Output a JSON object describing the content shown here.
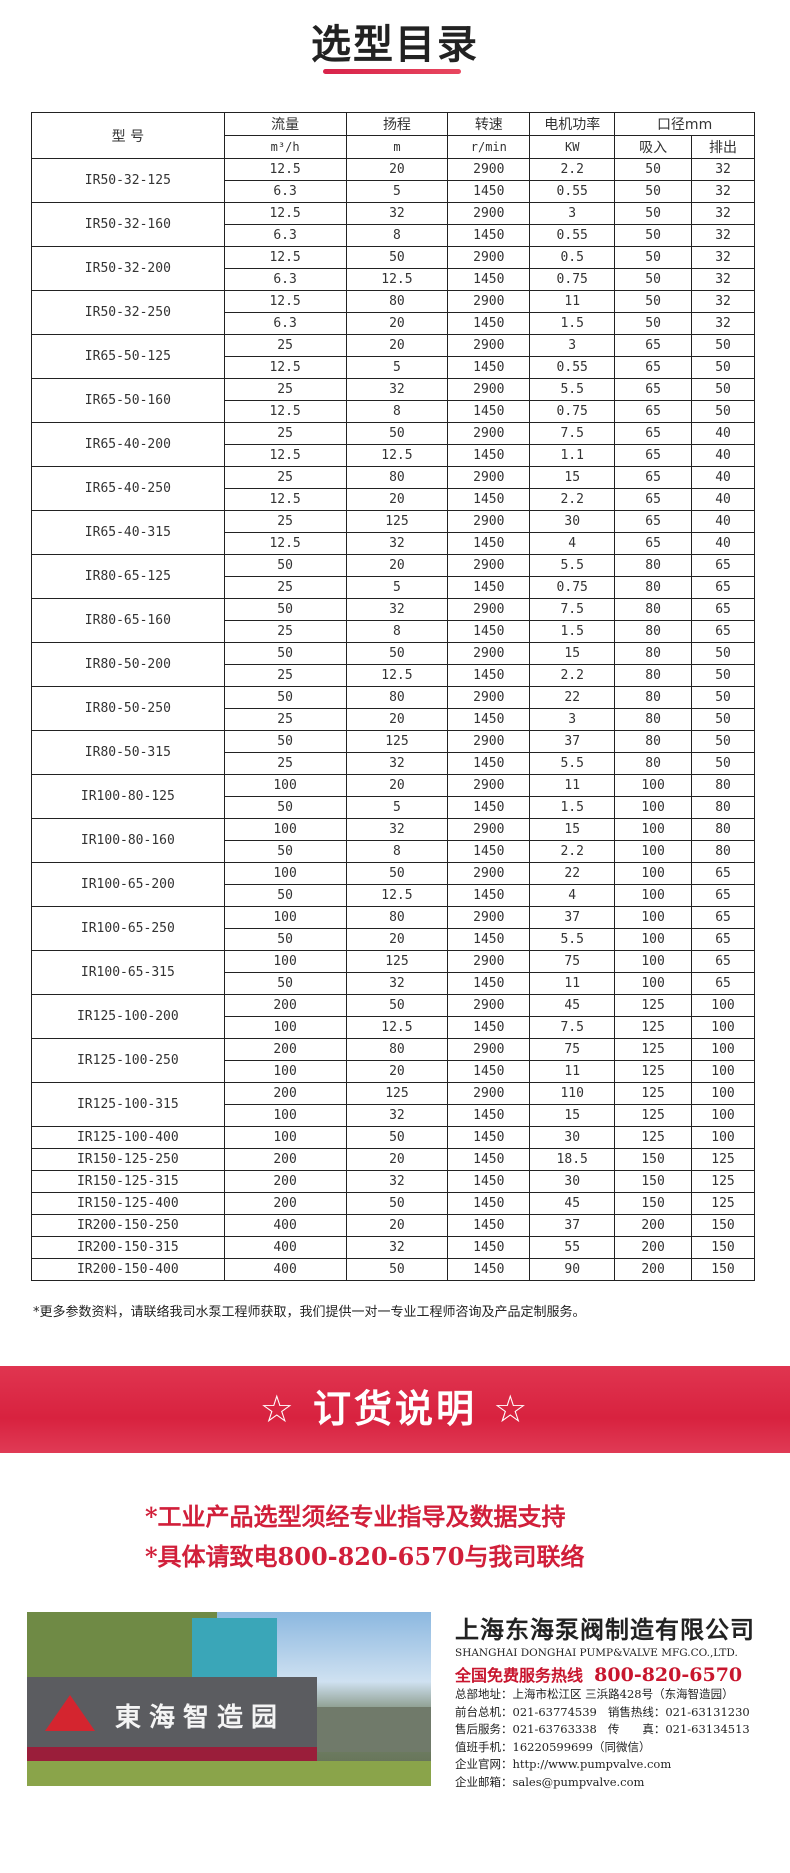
{
  "title": "选型目录",
  "table": {
    "headers": {
      "model": "型 号",
      "flow": "流量",
      "head": "扬程",
      "speed": "转速",
      "power": "电机功率",
      "diameter": "口径mm"
    },
    "units": {
      "flow": "m³/h",
      "head": "m",
      "speed": "r/min",
      "power": "KW",
      "inlet": "吸入",
      "outlet": "排出"
    },
    "models": [
      {
        "model": "IR50-32-125",
        "rows": [
          [
            "12.5",
            "20",
            "2900",
            "2.2",
            "50",
            "32"
          ],
          [
            "6.3",
            "5",
            "1450",
            "0.55",
            "50",
            "32"
          ]
        ]
      },
      {
        "model": "IR50-32-160",
        "rows": [
          [
            "12.5",
            "32",
            "2900",
            "3",
            "50",
            "32"
          ],
          [
            "6.3",
            "8",
            "1450",
            "0.55",
            "50",
            "32"
          ]
        ]
      },
      {
        "model": "IR50-32-200",
        "rows": [
          [
            "12.5",
            "50",
            "2900",
            "0.5",
            "50",
            "32"
          ],
          [
            "6.3",
            "12.5",
            "1450",
            "0.75",
            "50",
            "32"
          ]
        ]
      },
      {
        "model": "IR50-32-250",
        "rows": [
          [
            "12.5",
            "80",
            "2900",
            "11",
            "50",
            "32"
          ],
          [
            "6.3",
            "20",
            "1450",
            "1.5",
            "50",
            "32"
          ]
        ]
      },
      {
        "model": "IR65-50-125",
        "rows": [
          [
            "25",
            "20",
            "2900",
            "3",
            "65",
            "50"
          ],
          [
            "12.5",
            "5",
            "1450",
            "0.55",
            "65",
            "50"
          ]
        ]
      },
      {
        "model": "IR65-50-160",
        "rows": [
          [
            "25",
            "32",
            "2900",
            "5.5",
            "65",
            "50"
          ],
          [
            "12.5",
            "8",
            "1450",
            "0.75",
            "65",
            "50"
          ]
        ]
      },
      {
        "model": "IR65-40-200",
        "rows": [
          [
            "25",
            "50",
            "2900",
            "7.5",
            "65",
            "40"
          ],
          [
            "12.5",
            "12.5",
            "1450",
            "1.1",
            "65",
            "40"
          ]
        ]
      },
      {
        "model": "IR65-40-250",
        "rows": [
          [
            "25",
            "80",
            "2900",
            "15",
            "65",
            "40"
          ],
          [
            "12.5",
            "20",
            "1450",
            "2.2",
            "65",
            "40"
          ]
        ]
      },
      {
        "model": "IR65-40-315",
        "rows": [
          [
            "25",
            "125",
            "2900",
            "30",
            "65",
            "40"
          ],
          [
            "12.5",
            "32",
            "1450",
            "4",
            "65",
            "40"
          ]
        ]
      },
      {
        "model": "IR80-65-125",
        "rows": [
          [
            "50",
            "20",
            "2900",
            "5.5",
            "80",
            "65"
          ],
          [
            "25",
            "5",
            "1450",
            "0.75",
            "80",
            "65"
          ]
        ]
      },
      {
        "model": "IR80-65-160",
        "rows": [
          [
            "50",
            "32",
            "2900",
            "7.5",
            "80",
            "65"
          ],
          [
            "25",
            "8",
            "1450",
            "1.5",
            "80",
            "65"
          ]
        ]
      },
      {
        "model": "IR80-50-200",
        "rows": [
          [
            "50",
            "50",
            "2900",
            "15",
            "80",
            "50"
          ],
          [
            "25",
            "12.5",
            "1450",
            "2.2",
            "80",
            "50"
          ]
        ]
      },
      {
        "model": "IR80-50-250",
        "rows": [
          [
            "50",
            "80",
            "2900",
            "22",
            "80",
            "50"
          ],
          [
            "25",
            "20",
            "1450",
            "3",
            "80",
            "50"
          ]
        ]
      },
      {
        "model": "IR80-50-315",
        "rows": [
          [
            "50",
            "125",
            "2900",
            "37",
            "80",
            "50"
          ],
          [
            "25",
            "32",
            "1450",
            "5.5",
            "80",
            "50"
          ]
        ]
      },
      {
        "model": "IR100-80-125",
        "rows": [
          [
            "100",
            "20",
            "2900",
            "11",
            "100",
            "80"
          ],
          [
            "50",
            "5",
            "1450",
            "1.5",
            "100",
            "80"
          ]
        ]
      },
      {
        "model": "IR100-80-160",
        "rows": [
          [
            "100",
            "32",
            "2900",
            "15",
            "100",
            "80"
          ],
          [
            "50",
            "8",
            "1450",
            "2.2",
            "100",
            "80"
          ]
        ]
      },
      {
        "model": "IR100-65-200",
        "rows": [
          [
            "100",
            "50",
            "2900",
            "22",
            "100",
            "65"
          ],
          [
            "50",
            "12.5",
            "1450",
            "4",
            "100",
            "65"
          ]
        ]
      },
      {
        "model": "IR100-65-250",
        "rows": [
          [
            "100",
            "80",
            "2900",
            "37",
            "100",
            "65"
          ],
          [
            "50",
            "20",
            "1450",
            "5.5",
            "100",
            "65"
          ]
        ]
      },
      {
        "model": "IR100-65-315",
        "rows": [
          [
            "100",
            "125",
            "2900",
            "75",
            "100",
            "65"
          ],
          [
            "50",
            "32",
            "1450",
            "11",
            "100",
            "65"
          ]
        ]
      },
      {
        "model": "IR125-100-200",
        "rows": [
          [
            "200",
            "50",
            "2900",
            "45",
            "125",
            "100"
          ],
          [
            "100",
            "12.5",
            "1450",
            "7.5",
            "125",
            "100"
          ]
        ]
      },
      {
        "model": "IR125-100-250",
        "rows": [
          [
            "200",
            "80",
            "2900",
            "75",
            "125",
            "100"
          ],
          [
            "100",
            "20",
            "1450",
            "11",
            "125",
            "100"
          ]
        ]
      },
      {
        "model": "IR125-100-315",
        "rows": [
          [
            "200",
            "125",
            "2900",
            "110",
            "125",
            "100"
          ],
          [
            "100",
            "32",
            "1450",
            "15",
            "125",
            "100"
          ]
        ]
      },
      {
        "model": "IR125-100-400",
        "rows": [
          [
            "100",
            "50",
            "1450",
            "30",
            "125",
            "100"
          ]
        ]
      },
      {
        "model": "IR150-125-250",
        "rows": [
          [
            "200",
            "20",
            "1450",
            "18.5",
            "150",
            "125"
          ]
        ]
      },
      {
        "model": "IR150-125-315",
        "rows": [
          [
            "200",
            "32",
            "1450",
            "30",
            "150",
            "125"
          ]
        ]
      },
      {
        "model": "IR150-125-400",
        "rows": [
          [
            "200",
            "50",
            "1450",
            "45",
            "150",
            "125"
          ]
        ]
      },
      {
        "model": "IR200-150-250",
        "rows": [
          [
            "400",
            "20",
            "1450",
            "37",
            "200",
            "150"
          ]
        ]
      },
      {
        "model": "IR200-150-315",
        "rows": [
          [
            "400",
            "32",
            "1450",
            "55",
            "200",
            "150"
          ]
        ]
      },
      {
        "model": "IR200-150-400",
        "rows": [
          [
            "400",
            "50",
            "1450",
            "90",
            "200",
            "150"
          ]
        ]
      }
    ]
  },
  "note": "*更多参数资料，请联络我司水泵工程师获取，我们提供一对一专业工程师咨询及产品定制服务。",
  "banner": "☆ 订货说明 ☆",
  "order_lines": [
    "*工业产品选型须经专业指导及数据支持",
    "*具体请致电800-820-6570与我司联络"
  ],
  "photo": {
    "sign_text": "東海智造园"
  },
  "company": {
    "name_cn": "上海东海泵阀制造有限公司",
    "name_en": "SHANGHAI DONGHAI PUMP&VALVE MFG.CO.,LTD.",
    "hotline_label": "全国免费服务热线",
    "hotline": "800-820-6570",
    "address": "总部地址：上海市松江区 三浜路428号（东海智造园）",
    "front_desk": "前台总机：021-63774539",
    "sales": "销售热线：021-63131230",
    "service": "售后服务：021-63763338",
    "fax": "传　　真：021-63134513",
    "mobile": "值班手机：16220599699（同微信）",
    "website": "企业官网：http://www.pumpvalve.com",
    "email": "企业邮箱：sales@pumpvalve.com"
  },
  "colors": {
    "accent": "#d8223f",
    "text": "#222222"
  }
}
